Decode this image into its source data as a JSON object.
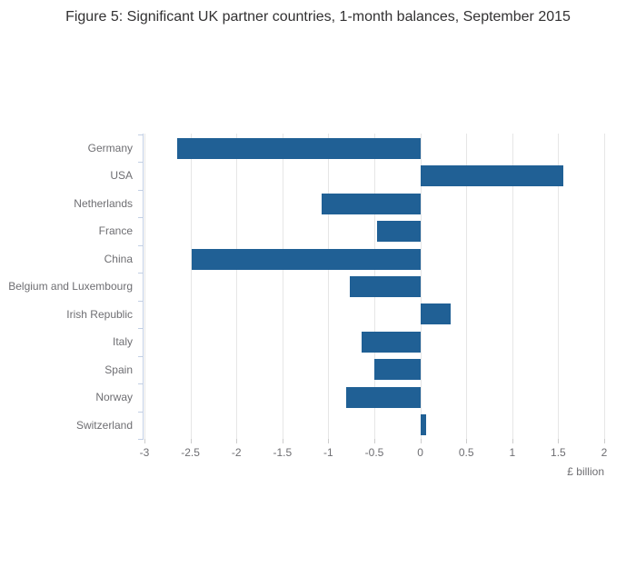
{
  "title": "Figure 5: Significant UK partner countries, 1-month balances, September 2015",
  "chart_data": {
    "type": "bar",
    "orientation": "horizontal",
    "title": "Figure 5: Significant UK partner countries, 1-month balances, September 2015",
    "categories": [
      "Germany",
      "USA",
      "Netherlands",
      "France",
      "China",
      "Belgium and Luxembourg",
      "Irish Republic",
      "Italy",
      "Spain",
      "Norway",
      "Switzerland"
    ],
    "values": [
      -2.64,
      1.56,
      -1.07,
      -0.47,
      -2.49,
      -0.77,
      0.33,
      -0.64,
      -0.5,
      -0.81,
      0.06
    ],
    "xlabel": "£ billion",
    "ylabel": "",
    "xlim": [
      -3,
      2
    ],
    "x_ticks": [
      -3,
      -2.5,
      -2,
      -1.5,
      -1,
      -0.5,
      0,
      0.5,
      1,
      1.5,
      2
    ],
    "grid": true,
    "legend": false,
    "bar_color": "#206095"
  },
  "colors": {
    "bar": "#206095",
    "gridline": "#e6e6e6",
    "axis": "#c2cfe4",
    "label_text": "#6e6e72",
    "title_text": "#323132"
  }
}
